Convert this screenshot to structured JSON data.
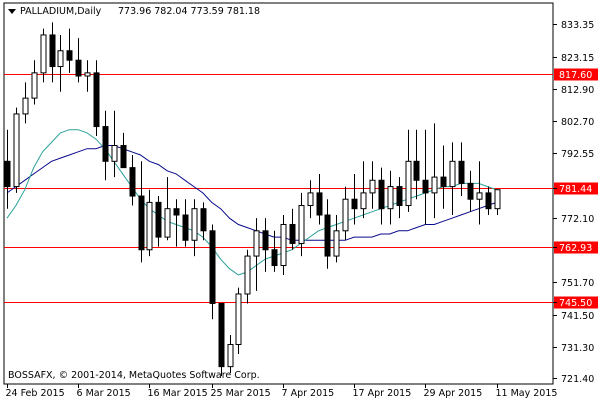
{
  "header": {
    "symbol": "PALLADIUM,Daily",
    "ohlc": "773.96 782.04 773.59 781.18",
    "icon": "dropdown-triangle-icon"
  },
  "footer": {
    "copyright": "BOSSAFX, © 2001-2014, MetaQuotes Software Corp."
  },
  "colors": {
    "background": "#ffffff",
    "frame": "#000000",
    "bull_fill": "#ffffff",
    "bear_fill": "#000000",
    "ma_fast": "#2aa198",
    "ma_slow": "#0a0a8c",
    "level_line": "#ff0000",
    "level_label_bg": "#ff0000"
  },
  "chart_data": {
    "type": "candlestick",
    "title": "PALLADIUM,Daily",
    "ylim": [
      721.4,
      836.0
    ],
    "y_ticks": [
      "833.35",
      "823.15",
      "812.90",
      "802.70",
      "792.55",
      "781.44",
      "772.10",
      "762.93",
      "751.70",
      "745.50",
      "741.50",
      "731.30",
      "721.40"
    ],
    "x_ticks": [
      {
        "label": "24 Feb 2015",
        "index": 0
      },
      {
        "label": "6 Mar 2015",
        "index": 8
      },
      {
        "label": "16 Mar 2015",
        "index": 16
      },
      {
        "label": "25 Mar 2015",
        "index": 23
      },
      {
        "label": "7 Apr 2015",
        "index": 31
      },
      {
        "label": "17 Apr 2015",
        "index": 39
      },
      {
        "label": "29 Apr 2015",
        "index": 47
      },
      {
        "label": "11 May 2015",
        "index": 55
      }
    ],
    "levels": [
      {
        "value": 817.6,
        "label": "817.60"
      },
      {
        "value": 781.44,
        "label": "781.44"
      },
      {
        "value": 762.93,
        "label": "762.93"
      },
      {
        "value": 745.5,
        "label": "745.50"
      }
    ],
    "candles": [
      [
        790,
        800,
        775,
        782
      ],
      [
        782,
        807,
        780,
        805
      ],
      [
        805,
        815,
        802,
        810
      ],
      [
        810,
        822,
        808,
        818
      ],
      [
        818,
        832,
        815,
        830
      ],
      [
        830,
        834,
        815,
        820
      ],
      [
        820,
        830,
        812,
        825
      ],
      [
        825,
        832,
        818,
        822
      ],
      [
        822,
        829,
        815,
        817
      ],
      [
        817,
        822,
        812,
        818
      ],
      [
        818,
        822,
        798,
        801
      ],
      [
        801,
        806,
        784,
        790
      ],
      [
        790,
        806,
        785,
        795
      ],
      [
        795,
        799,
        788,
        788
      ],
      [
        788,
        792,
        776,
        779
      ],
      [
        779,
        790,
        758,
        762
      ],
      [
        762,
        781,
        760,
        777
      ],
      [
        777,
        779,
        763,
        766
      ],
      [
        766,
        785,
        765,
        775
      ],
      [
        775,
        778,
        763,
        773
      ],
      [
        773,
        778,
        763,
        765
      ],
      [
        765,
        778,
        760,
        775
      ],
      [
        775,
        777,
        765,
        768
      ],
      [
        768,
        770,
        740,
        745
      ],
      [
        745,
        745,
        722,
        725
      ],
      [
        725,
        735,
        723,
        732
      ],
      [
        732,
        750,
        729,
        748
      ],
      [
        748,
        762,
        745,
        760
      ],
      [
        760,
        772,
        749,
        768
      ],
      [
        768,
        772,
        755,
        762
      ],
      [
        762,
        768,
        755,
        757
      ],
      [
        757,
        773,
        754,
        770
      ],
      [
        770,
        775,
        762,
        764
      ],
      [
        764,
        780,
        760,
        776
      ],
      [
        776,
        784,
        772,
        780
      ],
      [
        780,
        786,
        770,
        773
      ],
      [
        773,
        778,
        756,
        760
      ],
      [
        760,
        773,
        758,
        768
      ],
      [
        768,
        782,
        765,
        778
      ],
      [
        778,
        786,
        770,
        775
      ],
      [
        775,
        790,
        772,
        780
      ],
      [
        780,
        790,
        775,
        784
      ],
      [
        784,
        788,
        770,
        775
      ],
      [
        775,
        787,
        770,
        782
      ],
      [
        782,
        785,
        772,
        776
      ],
      [
        776,
        800,
        774,
        790
      ],
      [
        790,
        800,
        778,
        784
      ],
      [
        784,
        800,
        770,
        780
      ],
      [
        780,
        802,
        772,
        785
      ],
      [
        785,
        795,
        775,
        782
      ],
      [
        782,
        796,
        773,
        790
      ],
      [
        790,
        796,
        779,
        783
      ],
      [
        783,
        787,
        774,
        778
      ],
      [
        778,
        790,
        770,
        780
      ],
      [
        780,
        782,
        773,
        775
      ],
      [
        775,
        781,
        773,
        781
      ]
    ],
    "ma_fast": [
      772,
      776,
      781,
      788,
      793,
      796,
      799,
      800,
      800,
      799,
      797,
      794,
      790,
      786,
      782,
      778,
      775,
      773,
      771,
      770,
      769,
      768,
      766,
      763,
      759,
      756,
      754,
      755,
      757,
      759,
      760,
      761,
      762,
      764,
      766,
      768,
      769,
      770,
      771,
      772,
      773,
      774,
      775,
      776,
      777,
      778,
      779,
      780,
      781,
      782,
      782,
      783,
      783,
      783,
      782,
      781
    ],
    "ma_slow": [
      780,
      782,
      784,
      786,
      788,
      790,
      791,
      792,
      793,
      794,
      794,
      795,
      795,
      794,
      793,
      792,
      790,
      789,
      787,
      786,
      784,
      782,
      780,
      777,
      775,
      772,
      770,
      769,
      768,
      767,
      766,
      766,
      765,
      765,
      765,
      765,
      765,
      765,
      765,
      766,
      766,
      766,
      767,
      767,
      768,
      768,
      769,
      770,
      770,
      771,
      772,
      773,
      774,
      775,
      776,
      777
    ]
  }
}
